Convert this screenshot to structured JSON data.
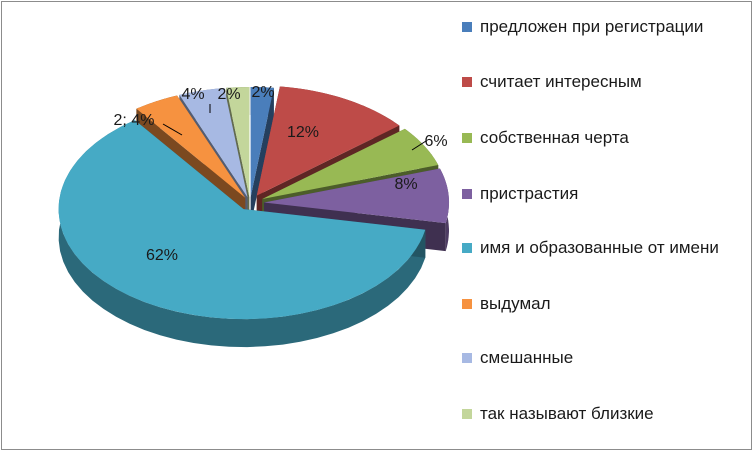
{
  "chart_data": {
    "type": "pie",
    "three_d": true,
    "exploded": true,
    "legend_position": "right",
    "categories": [
      "предложен при регистрации",
      "считает интересным",
      "собственная черта",
      "пристрастия",
      "имя и образованные от имени",
      "выдумал",
      "смешанные",
      "так называют близкие"
    ],
    "values": [
      2,
      12,
      6,
      8,
      62,
      4,
      4,
      2
    ],
    "data_labels": [
      "2%",
      "12%",
      "6%",
      "8%",
      "62%",
      "2; 4%",
      "4%",
      "2%"
    ],
    "colors": [
      "#4a7ebb",
      "#be4b48",
      "#98b954",
      "#7d60a0",
      "#46aac5",
      "#f69240",
      "#a7b9e3",
      "#c3d69b"
    ]
  }
}
